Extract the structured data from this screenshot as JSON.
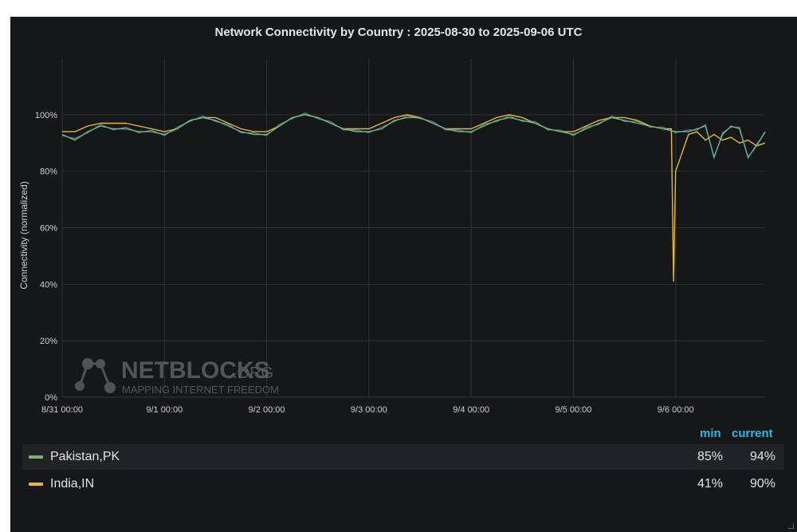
{
  "chart_data": {
    "type": "line",
    "title": "Network Connectivity by Country : 2025-08-30 to 2025-09-06 UTC",
    "ylabel": "Connectivity (normalized)",
    "xlabel": "",
    "ylim": [
      0,
      120
    ],
    "yticks": [
      0,
      20,
      40,
      60,
      80,
      100
    ],
    "ytick_labels": [
      "0%",
      "20%",
      "40%",
      "60%",
      "80%",
      "100%"
    ],
    "xlim": [
      "2025-08-31T00:00",
      "2025-09-06T21:00"
    ],
    "xticks": [
      "2025-08-31T00:00",
      "2025-09-01T00:00",
      "2025-09-02T00:00",
      "2025-09-03T00:00",
      "2025-09-04T00:00",
      "2025-09-05T00:00",
      "2025-09-06T00:00"
    ],
    "xtick_labels": [
      "8/31 00:00",
      "9/1 00:00",
      "9/2 00:00",
      "9/3 00:00",
      "9/4 00:00",
      "9/5 00:00",
      "9/6 00:00"
    ],
    "grid": true,
    "series": [
      {
        "name": "Pakistan,PK",
        "color": "#7eb26d",
        "x": [
          "2025-08-31T00:00",
          "2025-08-31T03:00",
          "2025-08-31T06:00",
          "2025-08-31T09:00",
          "2025-08-31T12:00",
          "2025-08-31T15:00",
          "2025-08-31T18:00",
          "2025-08-31T21:00",
          "2025-09-01T00:00",
          "2025-09-01T03:00",
          "2025-09-01T06:00",
          "2025-09-01T09:00",
          "2025-09-01T12:00",
          "2025-09-01T15:00",
          "2025-09-01T18:00",
          "2025-09-01T21:00",
          "2025-09-02T00:00",
          "2025-09-02T03:00",
          "2025-09-02T06:00",
          "2025-09-02T09:00",
          "2025-09-02T12:00",
          "2025-09-02T15:00",
          "2025-09-02T18:00",
          "2025-09-02T21:00",
          "2025-09-03T00:00",
          "2025-09-03T03:00",
          "2025-09-03T06:00",
          "2025-09-03T09:00",
          "2025-09-03T12:00",
          "2025-09-03T15:00",
          "2025-09-03T18:00",
          "2025-09-03T21:00",
          "2025-09-04T00:00",
          "2025-09-04T03:00",
          "2025-09-04T06:00",
          "2025-09-04T09:00",
          "2025-09-04T12:00",
          "2025-09-04T15:00",
          "2025-09-04T18:00",
          "2025-09-04T21:00",
          "2025-09-05T00:00",
          "2025-09-05T03:00",
          "2025-09-05T06:00",
          "2025-09-05T09:00",
          "2025-09-05T12:00",
          "2025-09-05T15:00",
          "2025-09-05T18:00",
          "2025-09-05T21:00",
          "2025-09-06T00:00",
          "2025-09-06T03:00",
          "2025-09-06T05:00",
          "2025-09-06T07:00",
          "2025-09-06T09:00",
          "2025-09-06T11:00",
          "2025-09-06T13:00",
          "2025-09-06T15:00",
          "2025-09-06T17:00",
          "2025-09-06T19:00",
          "2025-09-06T21:00"
        ],
        "y": [
          93,
          91,
          94,
          96,
          95,
          95,
          94,
          94,
          93,
          95,
          98,
          99,
          98,
          96,
          94,
          93,
          93,
          96,
          99,
          100,
          99,
          97,
          95,
          94,
          94,
          95,
          98,
          99,
          99,
          97,
          95,
          94,
          94,
          96,
          98,
          99,
          98,
          97,
          95,
          94,
          93,
          95,
          97,
          99,
          98,
          97,
          96,
          95,
          94,
          94,
          95,
          96,
          85,
          93,
          96,
          95,
          85,
          89,
          94
        ]
      },
      {
        "name": "India,IN",
        "color": "#eab839",
        "x": [
          "2025-08-31T00:00",
          "2025-08-31T03:00",
          "2025-08-31T06:00",
          "2025-08-31T09:00",
          "2025-08-31T12:00",
          "2025-08-31T15:00",
          "2025-08-31T18:00",
          "2025-08-31T21:00",
          "2025-09-01T00:00",
          "2025-09-01T03:00",
          "2025-09-01T06:00",
          "2025-09-01T09:00",
          "2025-09-01T12:00",
          "2025-09-01T15:00",
          "2025-09-01T18:00",
          "2025-09-01T21:00",
          "2025-09-02T00:00",
          "2025-09-02T03:00",
          "2025-09-02T06:00",
          "2025-09-02T09:00",
          "2025-09-02T12:00",
          "2025-09-02T15:00",
          "2025-09-02T18:00",
          "2025-09-02T21:00",
          "2025-09-03T00:00",
          "2025-09-03T03:00",
          "2025-09-03T06:00",
          "2025-09-03T09:00",
          "2025-09-03T12:00",
          "2025-09-03T15:00",
          "2025-09-03T18:00",
          "2025-09-03T21:00",
          "2025-09-04T00:00",
          "2025-09-04T03:00",
          "2025-09-04T06:00",
          "2025-09-04T09:00",
          "2025-09-04T12:00",
          "2025-09-04T15:00",
          "2025-09-04T18:00",
          "2025-09-04T21:00",
          "2025-09-05T00:00",
          "2025-09-05T03:00",
          "2025-09-05T06:00",
          "2025-09-05T09:00",
          "2025-09-05T12:00",
          "2025-09-05T15:00",
          "2025-09-05T18:00",
          "2025-09-05T21:00",
          "2025-09-05T23:00",
          "2025-09-05T23:30",
          "2025-09-06T00:00",
          "2025-09-06T03:00",
          "2025-09-06T05:00",
          "2025-09-06T07:00",
          "2025-09-06T09:00",
          "2025-09-06T11:00",
          "2025-09-06T13:00",
          "2025-09-06T15:00",
          "2025-09-06T17:00",
          "2025-09-06T19:00",
          "2025-09-06T21:00"
        ],
        "y": [
          94,
          94,
          96,
          97,
          97,
          97,
          96,
          95,
          94,
          95,
          98,
          99,
          99,
          97,
          95,
          94,
          94,
          96,
          99,
          100,
          99,
          97,
          95,
          95,
          95,
          97,
          99,
          100,
          99,
          97,
          95,
          95,
          95,
          97,
          99,
          100,
          99,
          97,
          95,
          94,
          94,
          96,
          98,
          99,
          99,
          98,
          96,
          95,
          95,
          41,
          80,
          93,
          94,
          91,
          93,
          91,
          92,
          90,
          91,
          89,
          90
        ]
      }
    ]
  },
  "legend": {
    "min_header": "min",
    "current_header": "current",
    "rows": [
      {
        "name": "Pakistan,PK",
        "color": "#7eb26d",
        "min": "85%",
        "current": "94%"
      },
      {
        "name": "India,IN",
        "color": "#eab839",
        "min": "41%",
        "current": "90%"
      }
    ]
  },
  "watermark": {
    "brand": "NETBLOCKS",
    "suffix": ".ORG",
    "tagline": "MAPPING INTERNET FREEDOM"
  }
}
